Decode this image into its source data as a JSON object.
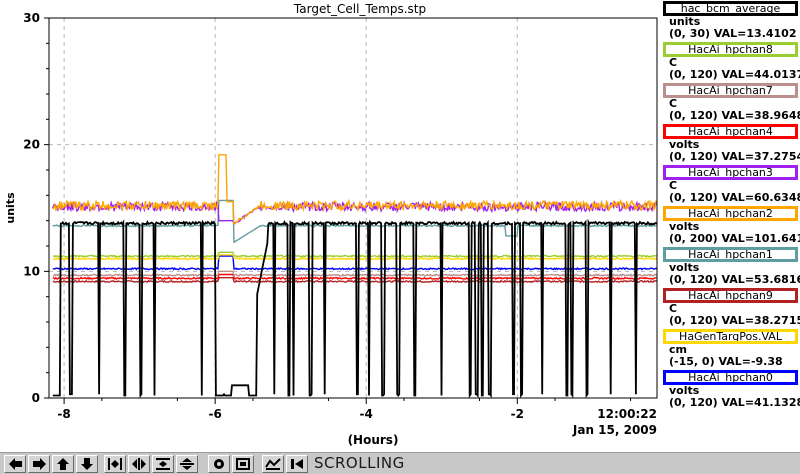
{
  "chart_data": {
    "type": "line",
    "title": "Target_Cell_Temps.stp",
    "xlabel": "(Hours)",
    "ylabel": "units",
    "xlim": [
      -8.2,
      -0.15
    ],
    "ylim": [
      0,
      30
    ],
    "x_ticks": [
      -8,
      -6,
      -4,
      -2
    ],
    "x_tick_labels": [
      "-8",
      "-6",
      "-4",
      "-2"
    ],
    "y_ticks": [
      0,
      10,
      20,
      30
    ],
    "y_tick_labels": [
      "0",
      "10",
      "20",
      "30"
    ],
    "end_time": "12:00:22",
    "end_date": "Jan 15, 2009",
    "grid": true,
    "legend_position": "right",
    "series": [
      {
        "name": "hac_bcm_average",
        "units": "units",
        "range": "(0, 30)",
        "val": "VAL=13.4102",
        "color": "#000000",
        "level": 13.8,
        "kind": "beam"
      },
      {
        "name": "HacAi_hpchan8",
        "units": "C",
        "range": "(0, 120)",
        "val": "VAL=44.0137",
        "color": "#9acd32",
        "level": 11.2,
        "kind": "flat"
      },
      {
        "name": "HacAi_hpchan7",
        "units": "C",
        "range": "(0, 120)",
        "val": "VAL=38.9648",
        "color": "#bc8f8f",
        "level": 9.7,
        "kind": "flat"
      },
      {
        "name": "HacAi_hpchan4",
        "units": "volts",
        "range": "(0, 120)",
        "val": "VAL=37.2754",
        "color": "#ff0000",
        "level": 9.45,
        "kind": "flat"
      },
      {
        "name": "HacAi_hpchan3",
        "units": "C",
        "range": "(0, 120)",
        "val": "VAL=60.6348",
        "color": "#a020f0",
        "level": 15.1,
        "kind": "noisy"
      },
      {
        "name": "HacAi_hpchan2",
        "units": "volts",
        "range": "(0, 200)",
        "val": "VAL=101.641",
        "color": "#ffa500",
        "level": 15.2,
        "kind": "noisy"
      },
      {
        "name": "HacAi_hpchan1",
        "units": "volts",
        "range": "(0, 120)",
        "val": "VAL=53.6816",
        "color": "#5f9ea0",
        "level": 13.6,
        "kind": "flat"
      },
      {
        "name": "HacAi_hpchan9",
        "units": "C",
        "range": "(0, 120)",
        "val": "VAL=38.2715",
        "color": "#b22222",
        "level": 9.2,
        "kind": "flat"
      },
      {
        "name": "HaGenTargPos.VAL",
        "units": "cm",
        "range": "(-15, 0)",
        "val": "VAL=-9.38",
        "color": "#ffd700",
        "level": 11.0,
        "kind": "flat"
      },
      {
        "name": "HacAi_hpchan0",
        "units": "volts",
        "range": "(0, 120)",
        "val": "VAL=41.1328",
        "color": "#0000ff",
        "level": 10.2,
        "kind": "flat"
      }
    ]
  },
  "toolbar": {
    "mode_label": "SCROLLING",
    "buttons": [
      {
        "name": "scroll-left-button",
        "icon": "arrow-left-icon"
      },
      {
        "name": "scroll-right-button",
        "icon": "arrow-right-icon"
      },
      {
        "name": "scroll-up-button",
        "icon": "arrow-up-icon"
      },
      {
        "name": "scroll-down-button",
        "icon": "arrow-down-icon"
      },
      {
        "name": "zoom-in-x-button",
        "icon": "zoom-in-x-icon"
      },
      {
        "name": "zoom-out-x-button",
        "icon": "zoom-out-x-icon"
      },
      {
        "name": "zoom-in-y-button",
        "icon": "zoom-in-y-icon"
      },
      {
        "name": "zoom-out-y-button",
        "icon": "zoom-out-y-icon"
      },
      {
        "name": "zoom-box-button",
        "icon": "zoom-box-icon"
      },
      {
        "name": "undo-zoom-button",
        "icon": "undo-zoom-icon"
      },
      {
        "name": "snapshot-button",
        "icon": "snapshot-icon"
      },
      {
        "name": "add-marker-button",
        "icon": "add-marker-icon"
      },
      {
        "name": "autoscale-button",
        "icon": "autoscale-icon"
      },
      {
        "name": "toggle-scroll-button",
        "icon": "toggle-scroll-icon"
      }
    ]
  }
}
